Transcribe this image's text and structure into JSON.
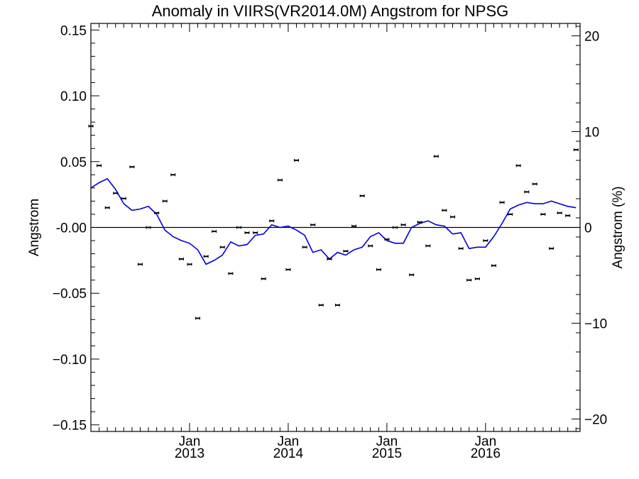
{
  "chart_data": {
    "type": "scatter",
    "title": "Anomaly in VIIRS(VR2014.0M) Angstrom for NPSG",
    "ylabel": "Angstrom",
    "y2label": "Angstrom (%)",
    "xlabel": "",
    "ylim": [
      -0.155,
      0.155
    ],
    "y2lim": [
      -21.3,
      21.3
    ],
    "xlim": [
      2012.0,
      2016.958
    ],
    "grid": false,
    "yticks": [
      {
        "value": 0.15,
        "label": "0.15"
      },
      {
        "value": 0.1,
        "label": "0.10"
      },
      {
        "value": 0.05,
        "label": "0.05"
      },
      {
        "value": 0.0,
        "label": "-0.00"
      },
      {
        "value": -0.05,
        "label": "−0.05"
      },
      {
        "value": -0.1,
        "label": "−0.10"
      },
      {
        "value": -0.15,
        "label": "−0.15"
      }
    ],
    "y2ticks": [
      {
        "value": 20,
        "label": "20"
      },
      {
        "value": 10,
        "label": "10"
      },
      {
        "value": 0,
        "label": "0"
      },
      {
        "value": -10,
        "label": "−10"
      },
      {
        "value": -20,
        "label": "−20"
      }
    ],
    "xticks": [
      {
        "value": 2013.0,
        "label": "Jan",
        "sublabel": "2013"
      },
      {
        "value": 2014.0,
        "label": "Jan",
        "sublabel": "2014"
      },
      {
        "value": 2015.0,
        "label": "Jan",
        "sublabel": "2015"
      },
      {
        "value": 2016.0,
        "label": "Jan",
        "sublabel": "2016"
      }
    ],
    "series": [
      {
        "type": "scatter",
        "color": "#000000",
        "points": [
          {
            "x": 2012.0,
            "y": 0.077
          },
          {
            "x": 2012.083,
            "y": 0.047
          },
          {
            "x": 2012.167,
            "y": 0.015
          },
          {
            "x": 2012.25,
            "y": 0.026
          },
          {
            "x": 2012.333,
            "y": 0.022
          },
          {
            "x": 2012.417,
            "y": 0.046
          },
          {
            "x": 2012.5,
            "y": -0.028
          },
          {
            "x": 2012.583,
            "y": 0.0
          },
          {
            "x": 2012.667,
            "y": 0.011
          },
          {
            "x": 2012.75,
            "y": 0.02
          },
          {
            "x": 2012.833,
            "y": 0.04
          },
          {
            "x": 2012.917,
            "y": -0.024
          },
          {
            "x": 2013.0,
            "y": -0.028
          },
          {
            "x": 2013.083,
            "y": -0.069
          },
          {
            "x": 2013.167,
            "y": -0.022
          },
          {
            "x": 2013.25,
            "y": -0.003
          },
          {
            "x": 2013.333,
            "y": -0.015
          },
          {
            "x": 2013.417,
            "y": -0.035
          },
          {
            "x": 2013.5,
            "y": 0.0
          },
          {
            "x": 2013.583,
            "y": -0.004
          },
          {
            "x": 2013.667,
            "y": -0.004
          },
          {
            "x": 2013.75,
            "y": -0.039
          },
          {
            "x": 2013.833,
            "y": 0.005
          },
          {
            "x": 2013.917,
            "y": 0.036
          },
          {
            "x": 2014.0,
            "y": -0.032
          },
          {
            "x": 2014.083,
            "y": 0.051
          },
          {
            "x": 2014.167,
            "y": -0.015
          },
          {
            "x": 2014.25,
            "y": 0.002
          },
          {
            "x": 2014.333,
            "y": -0.059
          },
          {
            "x": 2014.417,
            "y": -0.024
          },
          {
            "x": 2014.5,
            "y": -0.059
          },
          {
            "x": 2014.583,
            "y": -0.018
          },
          {
            "x": 2014.667,
            "y": 0.001
          },
          {
            "x": 2014.75,
            "y": 0.024
          },
          {
            "x": 2014.833,
            "y": -0.014
          },
          {
            "x": 2014.917,
            "y": -0.032
          },
          {
            "x": 2015.0,
            "y": -0.009
          },
          {
            "x": 2015.083,
            "y": 0.0
          },
          {
            "x": 2015.167,
            "y": 0.002
          },
          {
            "x": 2015.25,
            "y": -0.036
          },
          {
            "x": 2015.333,
            "y": 0.004
          },
          {
            "x": 2015.417,
            "y": -0.014
          },
          {
            "x": 2015.5,
            "y": 0.054
          },
          {
            "x": 2015.583,
            "y": 0.013
          },
          {
            "x": 2015.667,
            "y": 0.008
          },
          {
            "x": 2015.75,
            "y": -0.016
          },
          {
            "x": 2015.833,
            "y": -0.04
          },
          {
            "x": 2015.917,
            "y": -0.039
          },
          {
            "x": 2016.0,
            "y": -0.01
          },
          {
            "x": 2016.083,
            "y": -0.029
          },
          {
            "x": 2016.167,
            "y": 0.019
          },
          {
            "x": 2016.25,
            "y": 0.01
          },
          {
            "x": 2016.333,
            "y": 0.047
          },
          {
            "x": 2016.417,
            "y": 0.027
          },
          {
            "x": 2016.5,
            "y": 0.033
          },
          {
            "x": 2016.583,
            "y": 0.01
          },
          {
            "x": 2016.667,
            "y": -0.016
          },
          {
            "x": 2016.75,
            "y": 0.011
          },
          {
            "x": 2016.833,
            "y": 0.009
          },
          {
            "x": 2016.917,
            "y": 0.059
          }
        ]
      },
      {
        "type": "line",
        "color": "#0000dd",
        "points": [
          {
            "x": 2012.0,
            "y": 0.03
          },
          {
            "x": 2012.083,
            "y": 0.034
          },
          {
            "x": 2012.167,
            "y": 0.037
          },
          {
            "x": 2012.25,
            "y": 0.029
          },
          {
            "x": 2012.333,
            "y": 0.018
          },
          {
            "x": 2012.417,
            "y": 0.013
          },
          {
            "x": 2012.5,
            "y": 0.014
          },
          {
            "x": 2012.583,
            "y": 0.016
          },
          {
            "x": 2012.667,
            "y": 0.01
          },
          {
            "x": 2012.75,
            "y": -0.002
          },
          {
            "x": 2012.833,
            "y": -0.007
          },
          {
            "x": 2012.917,
            "y": -0.01
          },
          {
            "x": 2013.0,
            "y": -0.012
          },
          {
            "x": 2013.083,
            "y": -0.017
          },
          {
            "x": 2013.167,
            "y": -0.028
          },
          {
            "x": 2013.25,
            "y": -0.025
          },
          {
            "x": 2013.333,
            "y": -0.021
          },
          {
            "x": 2013.417,
            "y": -0.011
          },
          {
            "x": 2013.5,
            "y": -0.014
          },
          {
            "x": 2013.583,
            "y": -0.013
          },
          {
            "x": 2013.667,
            "y": -0.006
          },
          {
            "x": 2013.75,
            "y": -0.005
          },
          {
            "x": 2013.833,
            "y": 0.002
          },
          {
            "x": 2013.917,
            "y": 0.0
          },
          {
            "x": 2014.0,
            "y": 0.001
          },
          {
            "x": 2014.083,
            "y": -0.002
          },
          {
            "x": 2014.167,
            "y": -0.006
          },
          {
            "x": 2014.25,
            "y": -0.019
          },
          {
            "x": 2014.333,
            "y": -0.017
          },
          {
            "x": 2014.417,
            "y": -0.024
          },
          {
            "x": 2014.5,
            "y": -0.019
          },
          {
            "x": 2014.583,
            "y": -0.021
          },
          {
            "x": 2014.667,
            "y": -0.017
          },
          {
            "x": 2014.75,
            "y": -0.015
          },
          {
            "x": 2014.833,
            "y": -0.007
          },
          {
            "x": 2014.917,
            "y": -0.004
          },
          {
            "x": 2015.0,
            "y": -0.01
          },
          {
            "x": 2015.083,
            "y": -0.012
          },
          {
            "x": 2015.167,
            "y": -0.012
          },
          {
            "x": 2015.25,
            "y": 0.0
          },
          {
            "x": 2015.333,
            "y": 0.003
          },
          {
            "x": 2015.417,
            "y": 0.005
          },
          {
            "x": 2015.5,
            "y": 0.002
          },
          {
            "x": 2015.583,
            "y": 0.001
          },
          {
            "x": 2015.667,
            "y": -0.005
          },
          {
            "x": 2015.75,
            "y": -0.004
          },
          {
            "x": 2015.833,
            "y": -0.016
          },
          {
            "x": 2015.917,
            "y": -0.015
          },
          {
            "x": 2016.0,
            "y": -0.015
          },
          {
            "x": 2016.083,
            "y": -0.007
          },
          {
            "x": 2016.167,
            "y": 0.003
          },
          {
            "x": 2016.25,
            "y": 0.014
          },
          {
            "x": 2016.333,
            "y": 0.017
          },
          {
            "x": 2016.417,
            "y": 0.019
          },
          {
            "x": 2016.5,
            "y": 0.018
          },
          {
            "x": 2016.583,
            "y": 0.018
          },
          {
            "x": 2016.667,
            "y": 0.02
          },
          {
            "x": 2016.75,
            "y": 0.018
          },
          {
            "x": 2016.833,
            "y": 0.016
          },
          {
            "x": 2016.917,
            "y": 0.015
          }
        ]
      }
    ]
  }
}
